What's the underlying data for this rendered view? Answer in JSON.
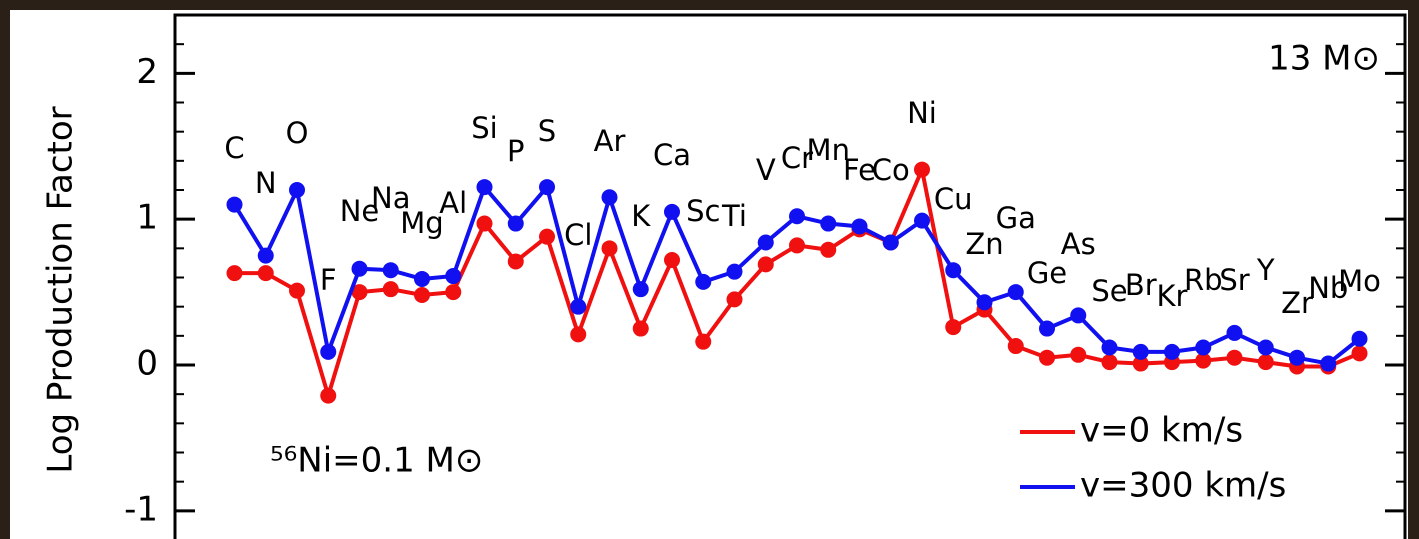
{
  "chart_data": {
    "type": "line",
    "title": "13 M⊙",
    "annotation": "⁵⁶Ni=0.1 M⊙",
    "y_label": "Log Production Factor",
    "categories": [
      "C",
      "N",
      "O",
      "F",
      "Ne",
      "Na",
      "Mg",
      "Al",
      "Si",
      "P",
      "S",
      "Cl",
      "Ar",
      "K",
      "Ca",
      "Sc",
      "Ti",
      "V",
      "Cr",
      "Mn",
      "Fe",
      "Co",
      "Ni",
      "Cu",
      "Zn",
      "Ga",
      "Ge",
      "As",
      "Se",
      "Br",
      "Kr",
      "Rb",
      "Sr",
      "Y",
      "Zr",
      "Nb",
      "Mo"
    ],
    "series": [
      {
        "name": "v=0 km/s",
        "color": "#f01010",
        "values": [
          0.63,
          0.63,
          0.51,
          -0.21,
          0.5,
          0.52,
          0.48,
          0.5,
          0.97,
          0.71,
          0.88,
          0.21,
          0.8,
          0.25,
          0.72,
          0.16,
          0.45,
          0.69,
          0.82,
          0.79,
          0.93,
          0.84,
          1.34,
          0.26,
          0.38,
          0.13,
          0.05,
          0.07,
          0.02,
          0.01,
          0.02,
          0.03,
          0.05,
          0.02,
          -0.01,
          -0.01,
          0.08
        ]
      },
      {
        "name": "v=300 km/s",
        "color": "#1010f0",
        "values": [
          1.1,
          0.75,
          1.2,
          0.09,
          0.66,
          0.65,
          0.59,
          0.61,
          1.22,
          0.97,
          1.22,
          0.4,
          1.15,
          0.52,
          1.05,
          0.57,
          0.64,
          0.84,
          1.02,
          0.97,
          0.95,
          0.84,
          0.99,
          0.65,
          0.43,
          0.5,
          0.25,
          0.34,
          0.12,
          0.09,
          0.09,
          0.12,
          0.22,
          0.12,
          0.05,
          0.01,
          0.18
        ]
      }
    ],
    "ylim": [
      -1.2,
      2.4
    ],
    "yticks": [
      -1,
      0,
      1,
      2
    ]
  }
}
